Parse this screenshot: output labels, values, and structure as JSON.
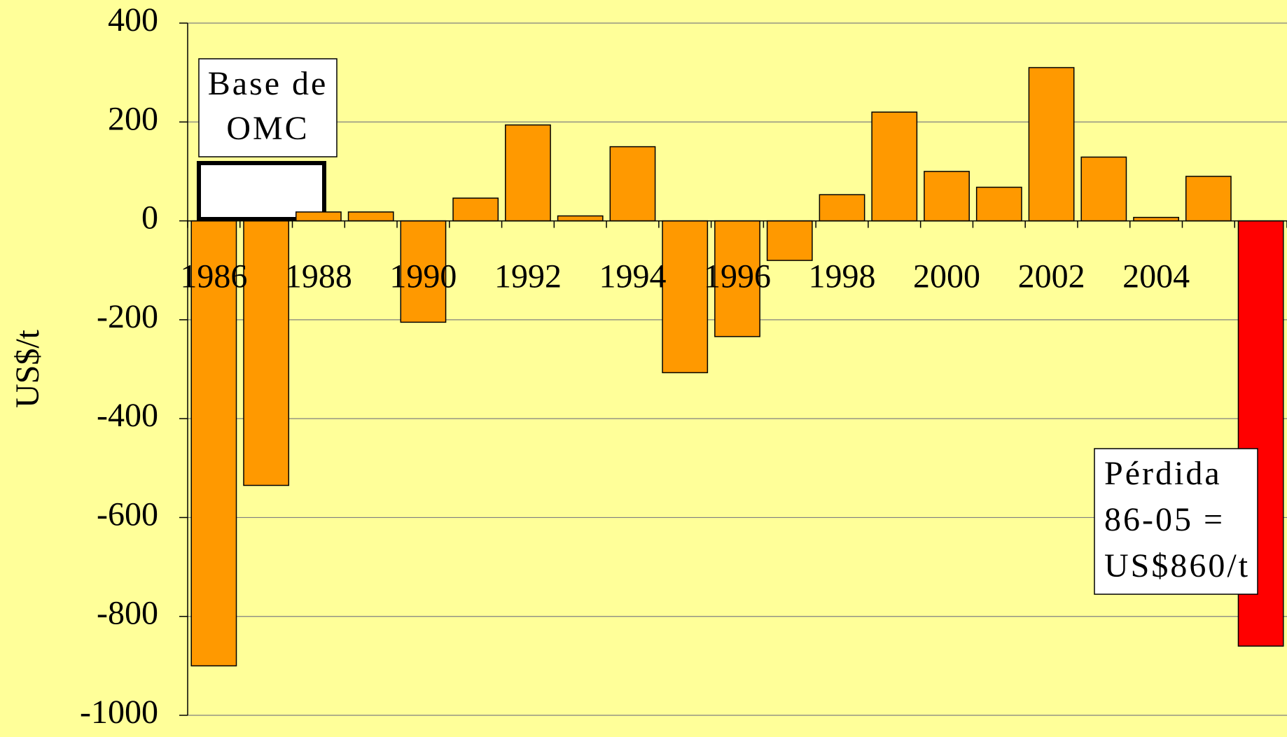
{
  "chart_data": {
    "type": "bar",
    "y_label": "US$/t",
    "categories": [
      "1986",
      null,
      "1988",
      null,
      "1990",
      null,
      "1992",
      null,
      "1994",
      null,
      "1996",
      null,
      "1998",
      null,
      "2000",
      null,
      "2002",
      null,
      "2004",
      null,
      null
    ],
    "values": [
      -900,
      -535,
      18,
      18,
      -205,
      46,
      194,
      10,
      150,
      -307,
      -234,
      -80,
      53,
      220,
      100,
      68,
      310,
      129,
      7,
      90,
      -860
    ],
    "colors": [
      "#ff9900",
      "#ff9900",
      "#ff9900",
      "#ff9900",
      "#ff9900",
      "#ff9900",
      "#ff9900",
      "#ff9900",
      "#ff9900",
      "#ff9900",
      "#ff9900",
      "#ff9900",
      "#ff9900",
      "#ff9900",
      "#ff9900",
      "#ff9900",
      "#ff9900",
      "#ff9900",
      "#ff9900",
      "#ff9900",
      "#ff0000"
    ],
    "ylim": [
      -1000,
      400
    ],
    "yticks": [
      -1000,
      -800,
      -600,
      -400,
      -200,
      0,
      200,
      400
    ],
    "grid": true,
    "annotations": [
      {
        "lines": [
          "Base de",
          "OMC"
        ]
      },
      {
        "lines": [
          "Pérdida",
          "86-05 =",
          "US$860/t"
        ]
      }
    ]
  }
}
